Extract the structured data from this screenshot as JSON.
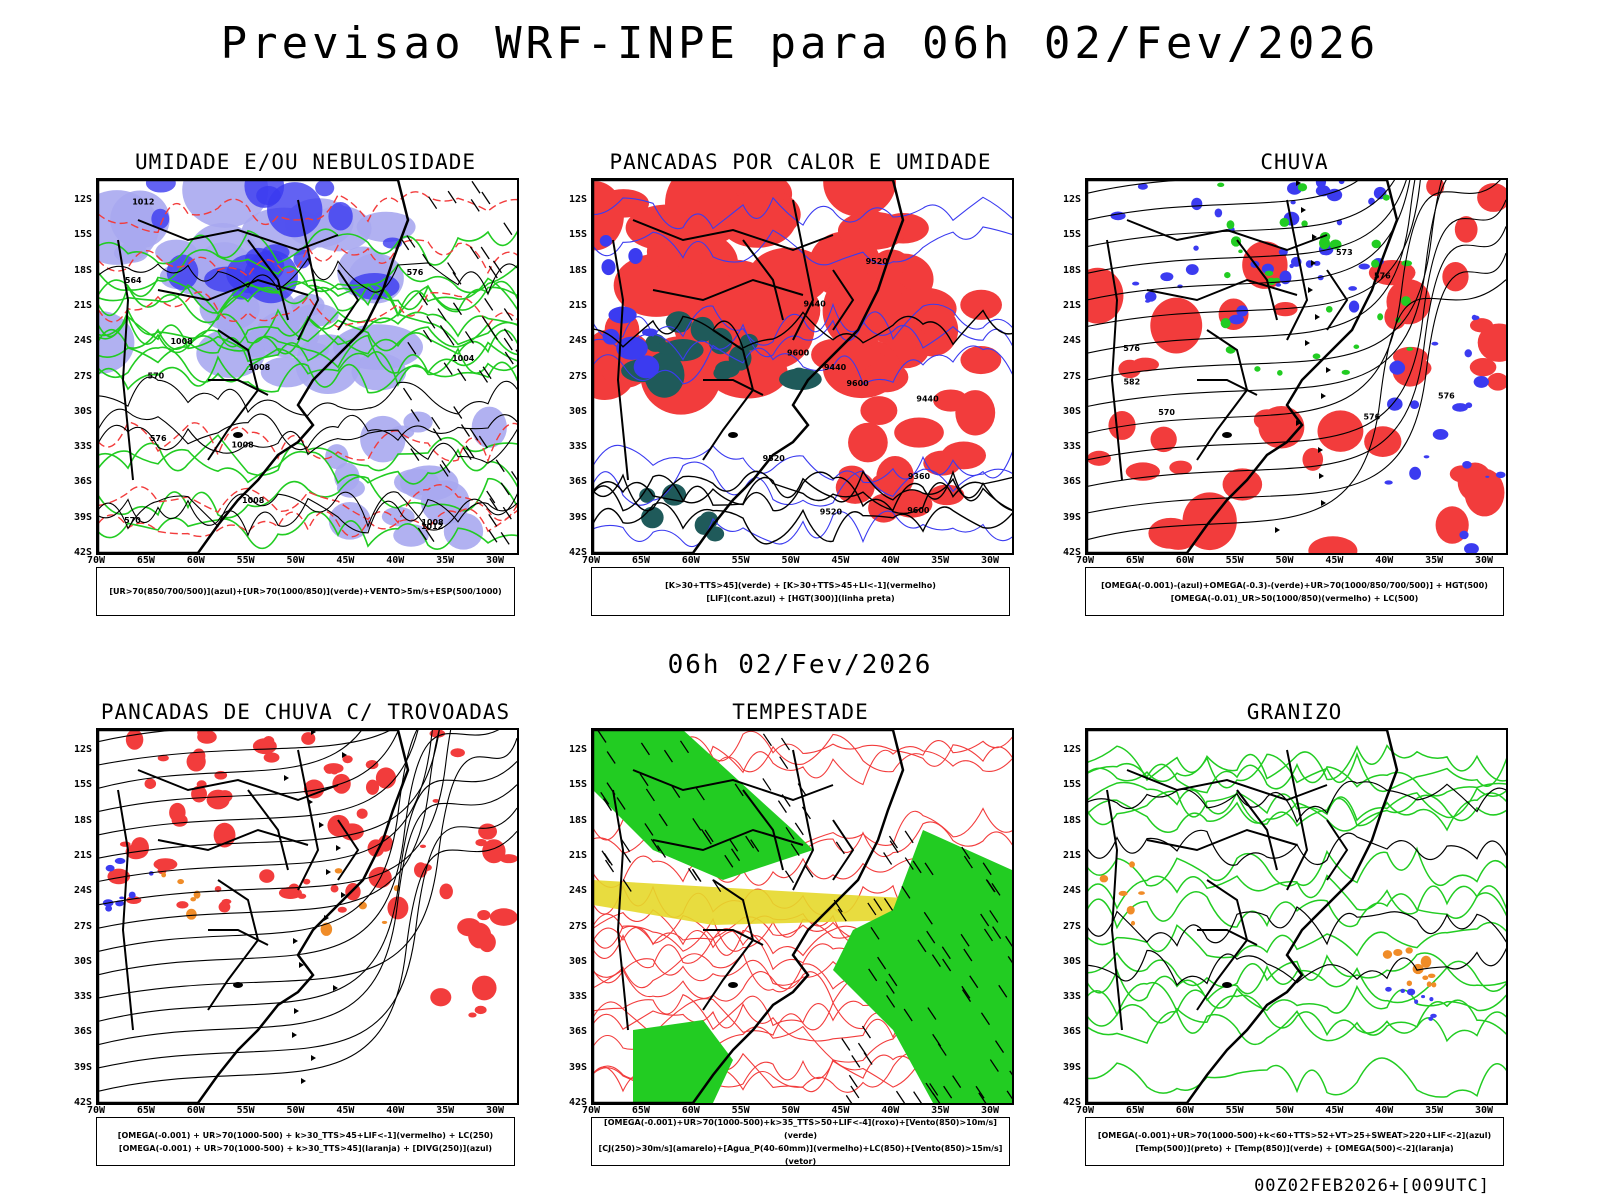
{
  "header": {
    "title": "Previsao WRF-INPE  para 06h 02/Fev/2026"
  },
  "middle_title": "06h 02/Fev/2026",
  "footer": "00Z02FEB2026+[009UTC]",
  "axes": {
    "lat_labels": [
      "12S",
      "15S",
      "18S",
      "21S",
      "24S",
      "27S",
      "30S",
      "33S",
      "36S",
      "39S",
      "42S"
    ],
    "lon_labels": [
      "70W",
      "65W",
      "60W",
      "55W",
      "50W",
      "45W",
      "40W",
      "35W",
      "30W"
    ]
  },
  "colors": {
    "blue": "#3b3bf0",
    "lightblue": "#a8a8f0",
    "green": "#22cc22",
    "red": "#f23c3c",
    "darkteal": "#1f5a5a",
    "yellow": "#e6d82a",
    "orange": "#f08c28",
    "magenta": "#d020d0"
  },
  "panels": [
    {
      "id": "umidade",
      "title": "UMIDADE E/OU NEBULOSIDADE",
      "legend": [
        "[UR>70(850/700/500)](azul)+[UR>70(1000/850)](verde)+VENTO>5m/s+ESP(500/1000)"
      ],
      "contour_labels": [
        "1008",
        "1012",
        "1012",
        "1008",
        "1008",
        "1004",
        "1008",
        "1008",
        "570",
        "576",
        "576",
        "570",
        "564"
      ]
    },
    {
      "id": "pancadas_calor",
      "title": "PANCADAS POR CALOR E UMIDADE",
      "legend": [
        "[K>30+TTS>45](verde) + [K>30+TTS>45+LI<-1](vermelho)",
        "[LIF](cont.azul) + [HGT(300)](linha preta)"
      ],
      "contour_labels": [
        "9600",
        "9520",
        "9600",
        "9440",
        "9520",
        "9600",
        "9520",
        "9440",
        "9360",
        "9440"
      ]
    },
    {
      "id": "chuva",
      "title": "CHUVA",
      "legend": [
        "[OMEGA(-0.001)-(azul)+OMEGA(-0.3)-(verde)+UR>70(1000/850/700/500)] + HGT(500)",
        "[OMEGA(-0.01)_UR>50(1000/850)(vermelho) + LC(500)"
      ],
      "contour_labels": [
        "576",
        "576",
        "576",
        "582",
        "570",
        "576",
        "573"
      ]
    },
    {
      "id": "trovoadas",
      "title": "PANCADAS DE CHUVA C/ TROVOADAS",
      "legend": [
        "[OMEGA(-0.001) + UR>70(1000-500) + k>30_TTS>45+LIF<-1](vermelho) + LC(250)",
        "[OMEGA(-0.001) + UR>70(1000-500) + k>30_TTS>45](laranja) + [DIVG(250)](azul)"
      ],
      "contour_labels": []
    },
    {
      "id": "tempestade",
      "title": "TEMPESTADE",
      "legend": [
        "[OMEGA(-0.001)+UR>70(1000-500)+k>35_TTS>50+LIF<-4](roxo)+[Vento(850)>10m/s](verde)",
        "[CJ(250)>30m/s](amarelo)+[Agua_P(40-60mm)](vermelho)+LC(850)+[Vento(850)>15m/s](vetor)"
      ],
      "contour_labels": []
    },
    {
      "id": "granizo",
      "title": "GRANIZO",
      "legend": [
        "[OMEGA(-0.001)+UR>70(1000-500)+k<60+TTS>52+VT>25+SWEAT>220+LIF<-2](azul)",
        "[Temp(500)](preto) + [Temp(850)](verde) + [OMEGA(500)<-2](laranja)"
      ],
      "contour_labels": []
    }
  ]
}
